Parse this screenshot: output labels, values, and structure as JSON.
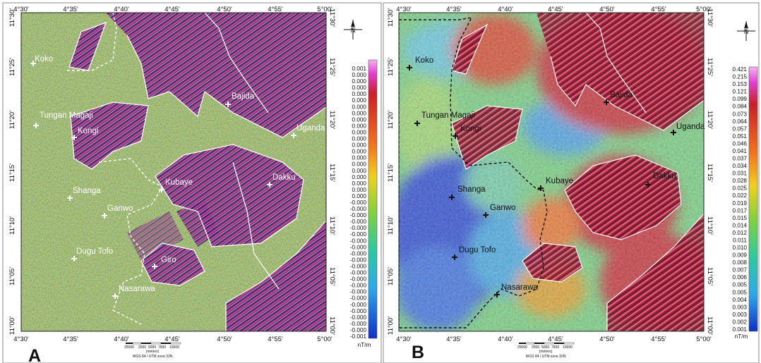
{
  "colors": {
    "panelA_base": "#8db94a",
    "panelB_low": "#1e3fd8",
    "panelB_high": "#c8202a",
    "boundary": "#ffffff"
  },
  "panels": [
    {
      "id": "A",
      "label": "A",
      "top_ticks": [
        "4°30'",
        "4°35'",
        "4°40'",
        "4°45'",
        "4°50'",
        "4°55'",
        "5°00'"
      ],
      "bottom_ticks": [
        "4°30'",
        "4°35'",
        "4°40'",
        "4°45'",
        "4°50'",
        "4°55'",
        "5°00'"
      ],
      "left_ticks": [
        "11°30'",
        "11°25'",
        "11°20'",
        "11°15'",
        "11°10'",
        "11°05'",
        "11°00'"
      ],
      "right_ticks": [
        "11°30'",
        "11°25'",
        "11°20'",
        "11°15'",
        "11°10'",
        "11°05'",
        "11°00'"
      ],
      "places": [
        "Koko",
        "Tungan Magaji",
        "Kongi",
        "Bajida",
        "Uganda",
        "Kubaye",
        "Dakku",
        "Shanga",
        "Ganwo",
        "Dugu Tofo",
        "Giro",
        "Nasarawa"
      ],
      "colorbar": {
        "unit": "nT/m",
        "labels": [
          "0.001",
          "0.000",
          "0.000",
          "0.000",
          "0.000",
          "0.000",
          "0.000",
          "0.000",
          "0.000",
          "0.000",
          "0.000",
          "0.000",
          "0.000",
          "0.000",
          "0.000",
          "0.000",
          "0.000",
          "0.000",
          "0.000",
          "0.000",
          "0.000",
          "-0.000",
          "-0.000",
          "-0.000",
          "-0.000",
          "-0.000",
          "-0.000",
          "-0.000",
          "-0.000",
          "-0.000",
          "-0.000",
          "-0.000",
          "-0.000",
          "-0.000",
          "-0.000",
          "-0.000",
          "-0.000",
          "-0.000",
          "-0.000",
          "-0.000",
          "-0.000",
          "-0.000",
          "-0.001"
        ]
      },
      "scalebar": {
        "ticks": [
          "2500",
          "0",
          "2500",
          "5000",
          "7500",
          "10000"
        ],
        "unit_label": "(meters)",
        "projection": "WGS 84 / UTM zone 32N"
      }
    },
    {
      "id": "B",
      "label": "B",
      "top_ticks": [
        "4°30'",
        "4°35'",
        "4°40'",
        "4°45'",
        "4°50'",
        "4°55'",
        "5°00'"
      ],
      "bottom_ticks": [
        "4°30'",
        "4°35'",
        "4°40'",
        "4°45'",
        "4°50'",
        "4°55'",
        "5°00'"
      ],
      "left_ticks": [
        "11°30'",
        "11°25'",
        "11°20'",
        "11°15'",
        "11°10'",
        "11°05'",
        "11°00'"
      ],
      "right_ticks": [
        "11°30'",
        "11°25'",
        "11°20'",
        "11°15'",
        "11°10'",
        "11°05'",
        "11°00'"
      ],
      "places": [
        "Koko",
        "Tungan Magaji",
        "Kongi",
        "Bajida",
        "Uganda",
        "Kubaye",
        "Dakku",
        "Shanga",
        "Ganwo",
        "Dugu Tofo",
        "Nasarawa"
      ],
      "colorbar": {
        "unit": "nT/m",
        "labels": [
          "0.421",
          "0.215",
          "0.153",
          "0.121",
          "0.099",
          "0.084",
          "0.073",
          "0.064",
          "0.057",
          "0.051",
          "0.046",
          "0.041",
          "0.037",
          "0.034",
          "0.031",
          "0.028",
          "0.025",
          "0.022",
          "0.019",
          "0.017",
          "0.015",
          "0.014",
          "0.012",
          "0.011",
          "0.010",
          "0.009",
          "0.008",
          "0.007",
          "0.006",
          "0.005",
          "0.005",
          "0.004",
          "0.003",
          "0.003",
          "0.002",
          "0.001"
        ]
      },
      "scalebar": {
        "ticks": [
          "2500",
          "0",
          "2500",
          "5000",
          "7500",
          "10000"
        ],
        "unit_label": "(meters)",
        "projection": "WGS 84 / UTM zone 32N"
      }
    }
  ]
}
